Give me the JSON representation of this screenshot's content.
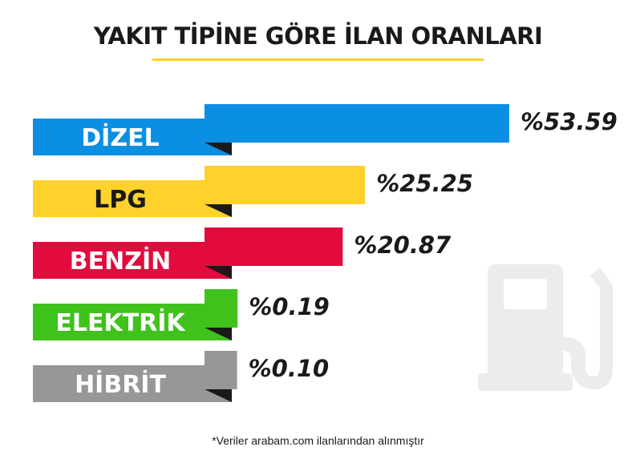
{
  "chart_data": {
    "type": "bar",
    "title": "YAKIT TİPİNE GÖRE İLAN ORANLARI",
    "categories": [
      "DİZEL",
      "LPG",
      "BENZİN",
      "ELEKTRİK",
      "HİBRİT"
    ],
    "values": [
      53.59,
      25.25,
      20.87,
      0.19,
      0.1
    ],
    "value_labels": [
      "%53.59",
      "%25.25",
      "%20.87",
      "%0.19",
      "%0.10"
    ],
    "colors": [
      "#0b8fe3",
      "#fdd22b",
      "#e30a3d",
      "#3fc21b",
      "#979797"
    ],
    "label_colors": [
      "#ffffff",
      "#1a1a1a",
      "#ffffff",
      "#ffffff",
      "#ffffff"
    ],
    "orientation": "horizontal",
    "xlim": [
      0,
      53.59
    ],
    "grid": false
  },
  "footnote": "*Veriler arabam.com ilanlarından alınmıştır",
  "icon": "fuel-pump-icon"
}
